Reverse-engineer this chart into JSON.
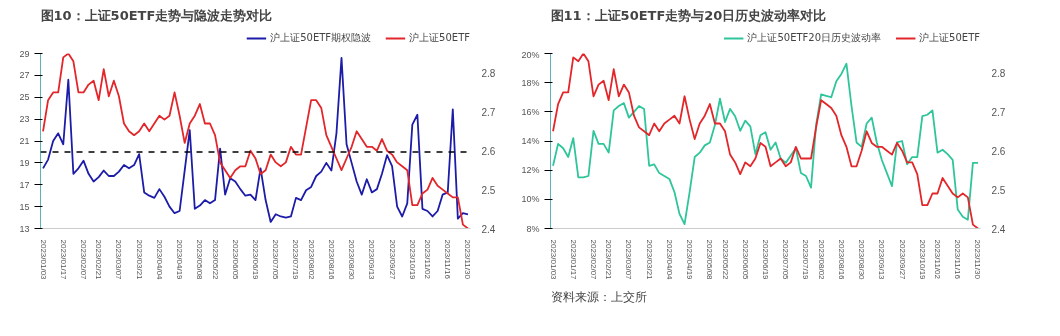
{
  "chart_data": [
    {
      "type": "line",
      "title": "图10：上证50ETF走势与隐波走势对比",
      "categories": [
        "2023/01/03",
        null,
        null,
        null,
        "2023/01/17",
        null,
        null,
        null,
        "2023/02/07",
        null,
        null,
        "2023/02/21",
        null,
        null,
        null,
        "2023/03/07",
        null,
        null,
        null,
        "2023/03/21",
        null,
        null,
        null,
        "2023/04/04",
        null,
        null,
        null,
        "2023/04/19",
        null,
        null,
        null,
        "2023/05/08",
        null,
        null,
        "2023/05/22",
        null,
        null,
        null,
        "2023/06/05",
        null,
        null,
        null,
        "2023/06/19",
        null,
        null,
        null,
        "2023/07/05",
        null,
        null,
        null,
        "2023/07/19",
        null,
        null,
        "2023/08/02",
        null,
        null,
        null,
        "2023/08/16",
        null,
        null,
        null,
        "2023/08/30",
        null,
        null,
        null,
        "2023/09/13",
        null,
        null,
        null,
        "2023/09/27",
        null,
        null,
        null,
        "2023/10/19",
        null,
        null,
        "2023/11/02",
        null,
        null,
        null,
        "2023/11/16",
        null,
        null,
        null,
        "2023/11/30"
      ],
      "series": [
        {
          "name": "沪上证50ETF期权隐波",
          "color": "#1c1ca8",
          "values": [
            18.5,
            19.3,
            21.0,
            21.7,
            20.7,
            26.6,
            18.0,
            18.5,
            19.2,
            18.0,
            17.3,
            17.7,
            18.3,
            17.8,
            17.8,
            18.2,
            18.8,
            18.5,
            18.8,
            19.8,
            16.3,
            16.0,
            15.8,
            16.6,
            15.9,
            15.0,
            14.4,
            14.6,
            18.3,
            22.0,
            14.8,
            15.1,
            15.6,
            15.3,
            15.6,
            20.3,
            16.1,
            17.6,
            17.3,
            16.6,
            16.0,
            16.1,
            15.6,
            18.5,
            15.6,
            13.6,
            14.3,
            14.1,
            14.0,
            14.1,
            15.8,
            15.6,
            16.5,
            16.8,
            17.8,
            18.2,
            19.0,
            18.3,
            21.7,
            28.6,
            20.7,
            19.0,
            17.3,
            16.1,
            17.5,
            16.3,
            16.6,
            18.0,
            19.7,
            18.7,
            15.0,
            14.1,
            15.3,
            22.5,
            23.4,
            14.8,
            14.6,
            14.1,
            14.6,
            16.1,
            16.3,
            23.9,
            13.9,
            14.4,
            14.3
          ]
        },
        {
          "name": "沪上证50ETF",
          "color": "#e3262a",
          "axis": "y2",
          "values": [
            2.65,
            2.73,
            2.75,
            2.75,
            2.84,
            2.85,
            2.83,
            2.75,
            2.75,
            2.77,
            2.78,
            2.73,
            2.81,
            2.74,
            2.78,
            2.74,
            2.67,
            2.65,
            2.64,
            2.65,
            2.67,
            2.65,
            2.67,
            2.69,
            2.68,
            2.69,
            2.75,
            2.69,
            2.62,
            2.67,
            2.69,
            2.72,
            2.67,
            2.67,
            2.64,
            2.57,
            2.55,
            2.53,
            2.55,
            2.56,
            2.56,
            2.6,
            2.58,
            2.54,
            2.55,
            2.59,
            2.57,
            2.56,
            2.57,
            2.61,
            2.59,
            2.59,
            2.66,
            2.73,
            2.73,
            2.71,
            2.64,
            2.61,
            2.58,
            2.55,
            2.58,
            2.61,
            2.65,
            2.63,
            2.61,
            2.61,
            2.6,
            2.63,
            2.6,
            2.59,
            2.57,
            2.56,
            2.55,
            2.46,
            2.46,
            2.49,
            2.5,
            2.53,
            2.51,
            2.5,
            2.49,
            2.48,
            2.48,
            2.41,
            2.4
          ]
        }
      ],
      "ylim": [
        13,
        29
      ],
      "yticks": [
        13,
        15,
        17,
        19,
        21,
        23,
        25,
        27,
        29
      ],
      "y2lim": [
        2.4,
        2.85
      ],
      "y2ticks": [
        2.4,
        2.5,
        2.6,
        2.7,
        2.8
      ],
      "ref_lines": [
        {
          "axis": "y",
          "value": 20,
          "color": "#000000",
          "line_style": "dashed"
        }
      ],
      "legend": "top"
    },
    {
      "type": "line",
      "title": "图11：上证50ETF走势与20日历史波动率对比",
      "categories": [
        "2023/01/03",
        null,
        null,
        null,
        "2023/01/17",
        null,
        null,
        null,
        "2023/02/07",
        null,
        null,
        "2023/02/21",
        null,
        null,
        null,
        "2023/03/07",
        null,
        null,
        null,
        "2023/03/21",
        null,
        null,
        null,
        "2023/04/04",
        null,
        null,
        null,
        "2023/04/19",
        null,
        null,
        null,
        "2023/05/08",
        null,
        null,
        "2023/05/22",
        null,
        null,
        null,
        "2023/06/05",
        null,
        null,
        null,
        "2023/06/19",
        null,
        null,
        null,
        "2023/07/05",
        null,
        null,
        null,
        "2023/07/19",
        null,
        null,
        "2023/08/02",
        null,
        null,
        null,
        "2023/08/16",
        null,
        null,
        null,
        "2023/08/30",
        null,
        null,
        null,
        "2023/09/13",
        null,
        null,
        null,
        "2023/09/27",
        null,
        null,
        null,
        "2023/10/19",
        null,
        null,
        "2023/11/02",
        null,
        null,
        null,
        "2023/11/16",
        null,
        null,
        null,
        "2023/11/30"
      ],
      "series": [
        {
          "name": "沪上证50ETF20日历史波动率",
          "color": "#2ec59a",
          "values": [
            12.3,
            13.8,
            13.5,
            12.9,
            14.2,
            11.5,
            11.5,
            11.6,
            14.7,
            13.8,
            13.8,
            13.2,
            16.1,
            16.4,
            16.6,
            15.6,
            16.0,
            16.4,
            16.2,
            12.3,
            12.4,
            11.8,
            11.6,
            11.4,
            10.5,
            9.0,
            8.3,
            10.5,
            12.9,
            13.2,
            13.7,
            13.9,
            15.1,
            16.9,
            15.3,
            16.2,
            15.7,
            14.7,
            15.4,
            15.0,
            13.1,
            14.4,
            14.6,
            13.4,
            13.9,
            12.8,
            12.5,
            13.0,
            13.5,
            11.8,
            11.6,
            10.8,
            15.1,
            17.2,
            17.1,
            17.0,
            18.1,
            18.6,
            19.3,
            16.4,
            13.9,
            13.6,
            15.2,
            15.6,
            13.9,
            12.7,
            11.8,
            10.9,
            13.9,
            14.0,
            12.4,
            12.9,
            12.9,
            15.7,
            15.8,
            16.1,
            13.2,
            13.4,
            13.1,
            12.7,
            9.3,
            8.8,
            8.6,
            12.5,
            12.5
          ]
        },
        {
          "name": "沪上证50ETF",
          "color": "#e3262a",
          "axis": "y2",
          "values": [
            2.65,
            2.72,
            2.75,
            2.75,
            2.84,
            2.83,
            2.85,
            2.83,
            2.74,
            2.77,
            2.78,
            2.73,
            2.81,
            2.74,
            2.77,
            2.75,
            2.69,
            2.66,
            2.65,
            2.64,
            2.67,
            2.65,
            2.67,
            2.68,
            2.69,
            2.67,
            2.74,
            2.68,
            2.63,
            2.67,
            2.69,
            2.72,
            2.67,
            2.67,
            2.65,
            2.59,
            2.57,
            2.54,
            2.57,
            2.56,
            2.58,
            2.62,
            2.61,
            2.56,
            2.57,
            2.58,
            2.56,
            2.57,
            2.61,
            2.58,
            2.58,
            2.58,
            2.66,
            2.73,
            2.72,
            2.71,
            2.69,
            2.64,
            2.61,
            2.56,
            2.56,
            2.6,
            2.65,
            2.62,
            2.61,
            2.61,
            2.6,
            2.59,
            2.62,
            2.6,
            2.57,
            2.57,
            2.54,
            2.46,
            2.46,
            2.49,
            2.49,
            2.53,
            2.51,
            2.49,
            2.48,
            2.49,
            2.48,
            2.41,
            2.4
          ]
        }
      ],
      "ylim": [
        8,
        20
      ],
      "yticks": [
        {
          "value": 8,
          "label": "8%"
        },
        {
          "value": 10,
          "label": "10%"
        },
        {
          "value": 12,
          "label": "12%"
        },
        {
          "value": 14,
          "label": "14%"
        },
        {
          "value": 16,
          "label": "16%"
        },
        {
          "value": 18,
          "label": "18%"
        },
        {
          "value": 20,
          "label": "20%"
        }
      ],
      "y2lim": [
        2.4,
        2.85
      ],
      "y2ticks": [
        2.4,
        2.5,
        2.6,
        2.7,
        2.8
      ],
      "legend": "top",
      "annotations": [
        "资料来源：上交所"
      ]
    }
  ]
}
